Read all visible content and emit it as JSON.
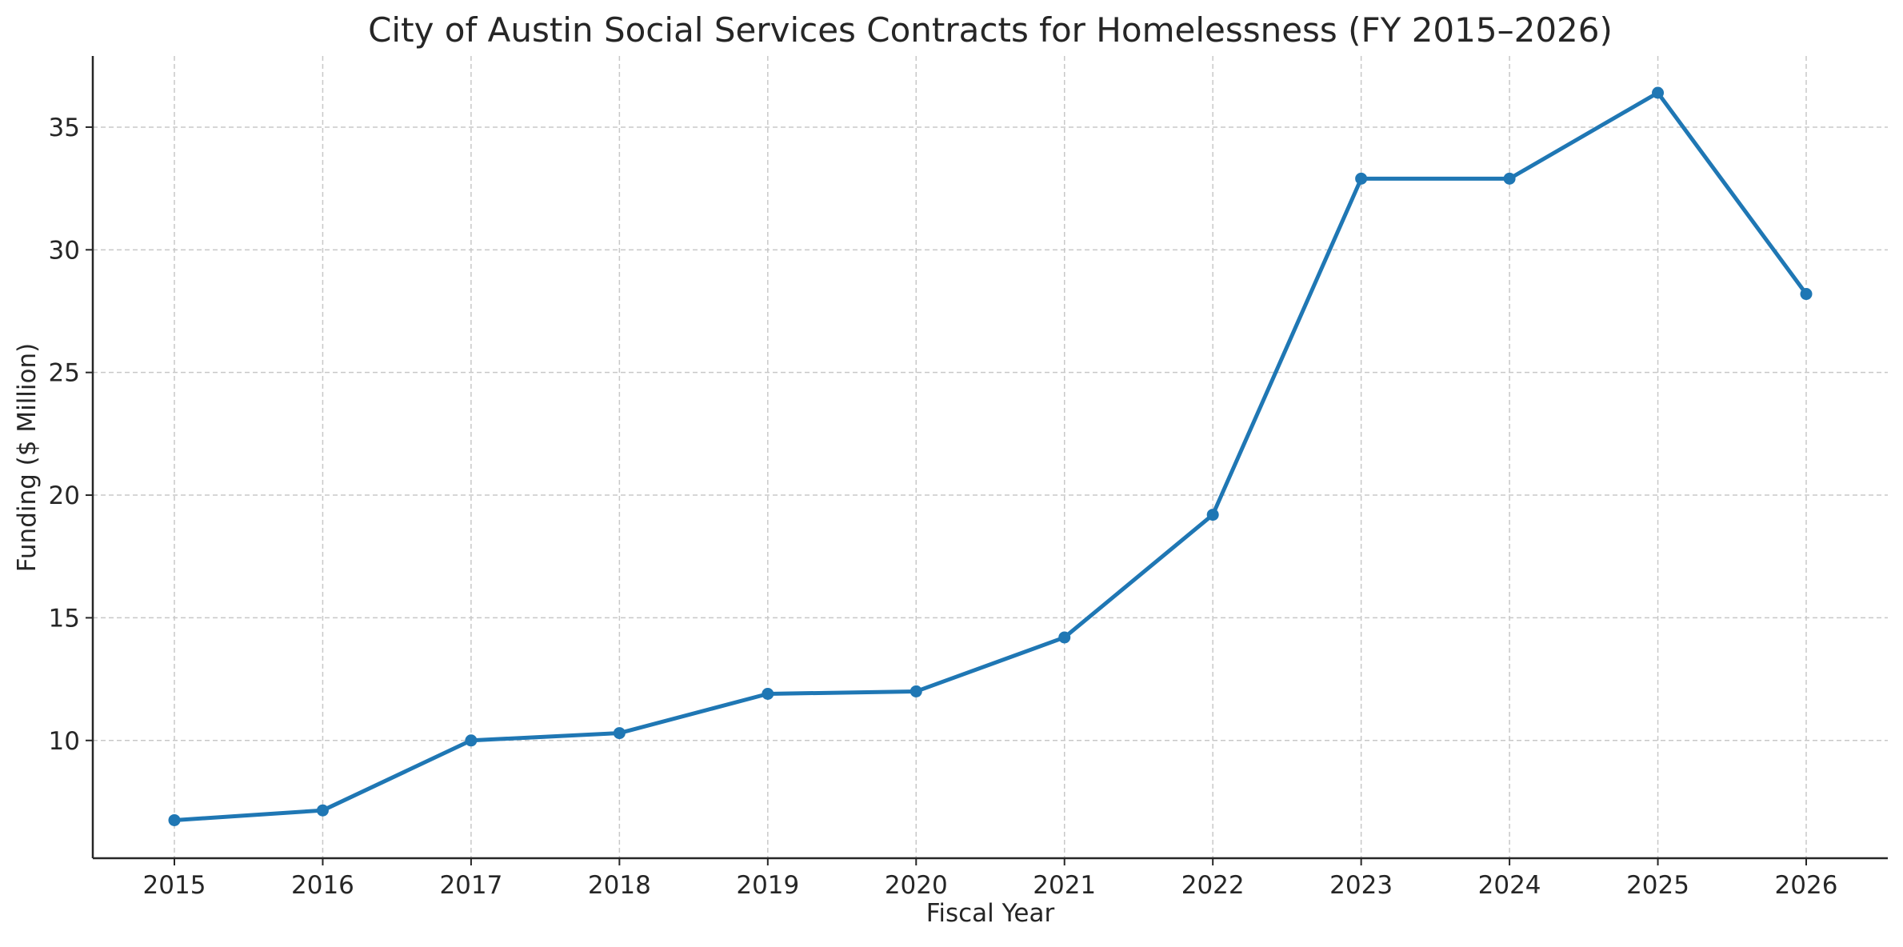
{
  "colors": {
    "series": "#1f77b4",
    "grid": "#c8c8c8",
    "axis": "#262626"
  },
  "chart_data": {
    "type": "line",
    "title": "City of Austin Social Services Contracts for Homelessness (FY 2015–2026)",
    "xlabel": "Fiscal Year",
    "ylabel": "Funding ($ Million)",
    "x": [
      "2015",
      "2016",
      "2017",
      "2018",
      "2019",
      "2020",
      "2021",
      "2022",
      "2023",
      "2024",
      "2025",
      "2026"
    ],
    "series": [
      {
        "values": [
          6.75,
          7.15,
          10.0,
          10.3,
          11.9,
          12.0,
          14.2,
          19.2,
          32.9,
          32.9,
          36.4,
          28.2
        ],
        "marker": "circle"
      }
    ],
    "yticks": [
      10,
      15,
      20,
      25,
      30,
      35
    ],
    "ylim": [
      5.2,
      37.9
    ],
    "grid": true,
    "legend": "none"
  }
}
